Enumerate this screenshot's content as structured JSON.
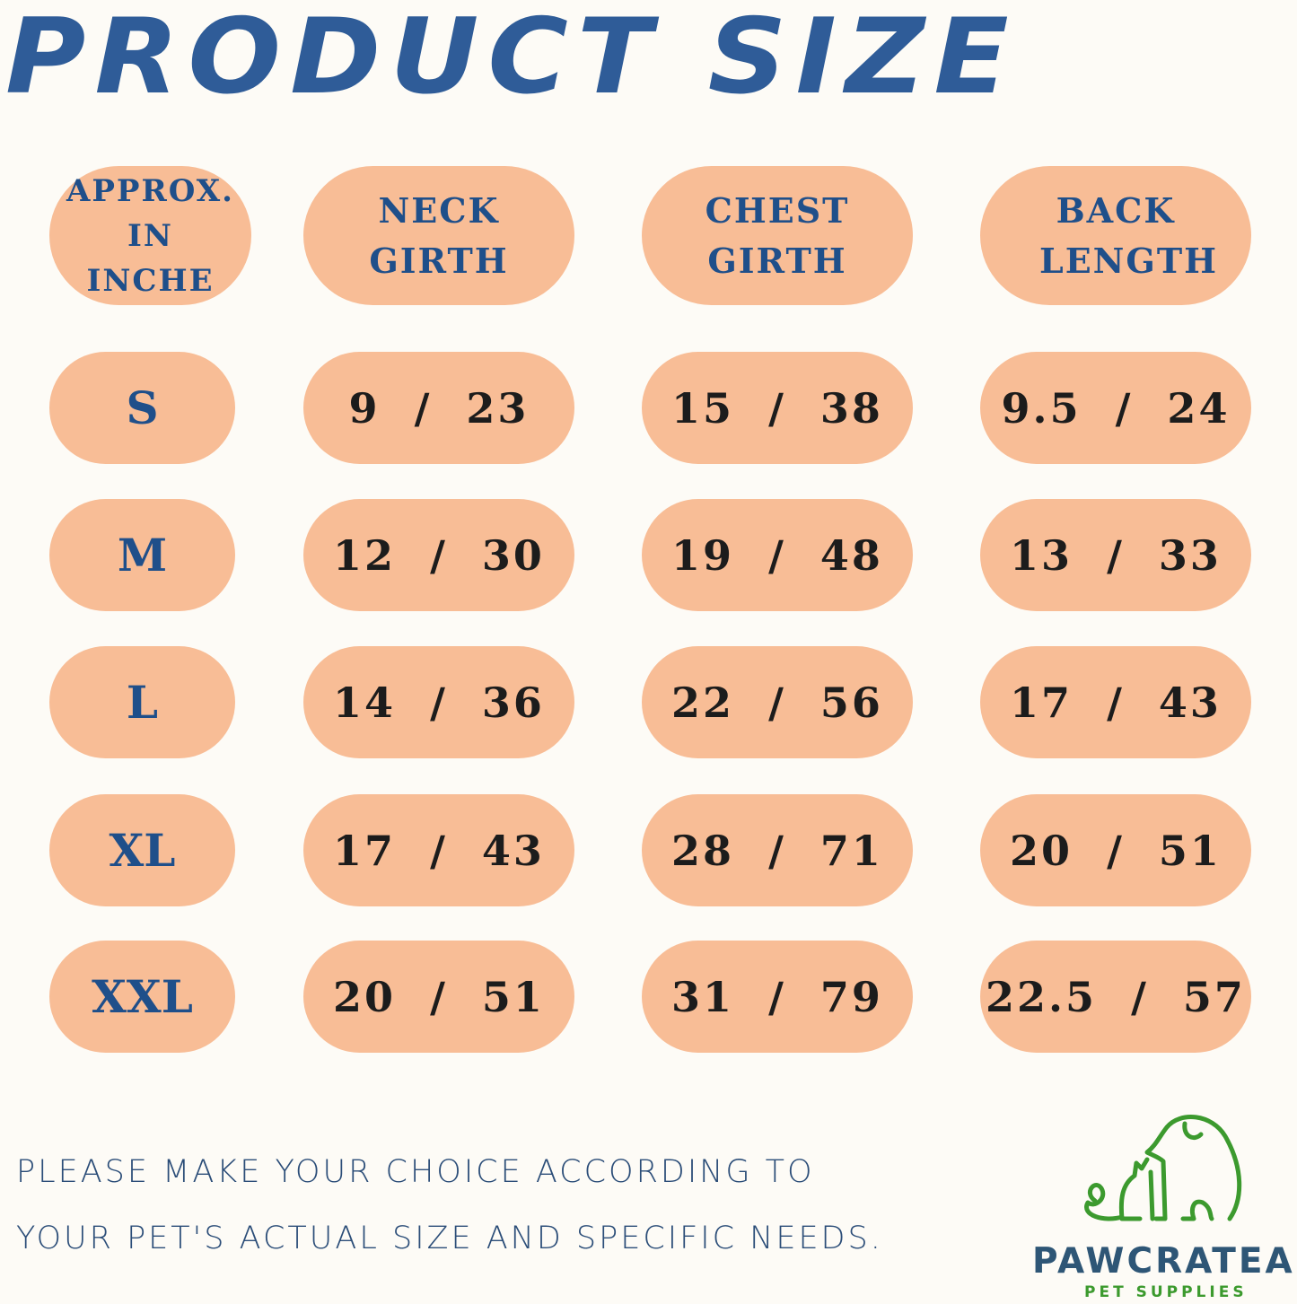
{
  "title": "PRODUCT SIZE",
  "headers": [
    "APPROX. IN INCHE",
    "NECK GIRTH",
    "CHEST GIRTH",
    "BACK LENGTH"
  ],
  "rows": [
    {
      "size": "S",
      "neck": "9 / 23",
      "chest": "15 / 38",
      "back": "9.5 / 24"
    },
    {
      "size": "M",
      "neck": "12 / 30",
      "chest": "19 / 48",
      "back": "13 / 33"
    },
    {
      "size": "L",
      "neck": "14 / 36",
      "chest": "22 / 56",
      "back": "17 / 43"
    },
    {
      "size": "XL",
      "neck": "17 / 43",
      "chest": "28 / 71",
      "back": "20 / 51"
    },
    {
      "size": "XXL",
      "neck": "20 / 51",
      "chest": "31 / 79",
      "back": "22.5 / 57"
    }
  ],
  "note": {
    "line1": "PLEASE MAKE YOUR CHOICE ACCORDING TO",
    "line2": "YOUR PET'S ACTUAL SIZE AND SPECIFIC NEEDS."
  },
  "brand": {
    "name": "PAWCRATEAN",
    "tagline": "PET SUPPLIES",
    "logo_icon": "cat-and-dog-outline-icon"
  },
  "colors": {
    "background": "#fdfbf6",
    "pill": "#f8bd96",
    "title_blue": "#2f5c98",
    "logo_green": "#3c9a2e"
  }
}
